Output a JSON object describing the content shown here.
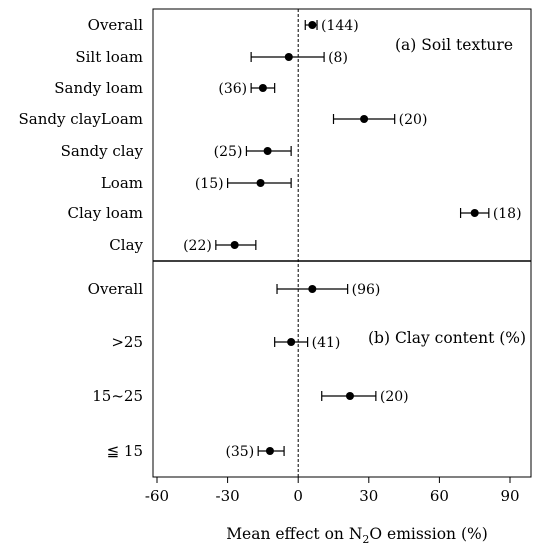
{
  "chart_data": {
    "type": "forest",
    "xlabel": "Mean effect on N₂O emission (%)",
    "xlim": [
      -60,
      95
    ],
    "xticks": [
      -60,
      -30,
      0,
      30,
      60,
      90
    ],
    "reference_line": 0,
    "panels": [
      {
        "label": "(a)  Soil texture",
        "rows": [
          {
            "category": "Overall",
            "mean": 6,
            "lower": 3,
            "upper": 8,
            "n": "(144)"
          },
          {
            "category": "Silt loam",
            "mean": -4,
            "lower": -20,
            "upper": 11,
            "n": "(8)"
          },
          {
            "category": "Sandy loam",
            "mean": -15,
            "lower": -20,
            "upper": -10,
            "n": "(36)"
          },
          {
            "category": "Sandy clayLoam",
            "mean": 28,
            "lower": 15,
            "upper": 41,
            "n": "(20)"
          },
          {
            "category": "Sandy clay",
            "mean": -13,
            "lower": -22,
            "upper": -3,
            "n": "(25)"
          },
          {
            "category": "Loam",
            "mean": -16,
            "lower": -30,
            "upper": -3,
            "n": "(15)"
          },
          {
            "category": "Clay loam",
            "mean": 75,
            "lower": 69,
            "upper": 81,
            "n": "(18)"
          },
          {
            "category": "Clay",
            "mean": -27,
            "lower": -35,
            "upper": -18,
            "n": "(22)"
          }
        ]
      },
      {
        "label": "(b) Clay content (%)",
        "rows": [
          {
            "category": "Overall",
            "mean": 6,
            "lower": -9,
            "upper": 21,
            "n": "(96)"
          },
          {
            "category": ">25",
            "mean": -3,
            "lower": -10,
            "upper": 4,
            "n": "(41)"
          },
          {
            "category": "15~25",
            "mean": 22,
            "lower": 10,
            "upper": 33,
            "n": "(20)"
          },
          {
            "category": "≦ 15",
            "mean": -12,
            "lower": -17,
            "upper": -6,
            "n": "(35)"
          }
        ]
      }
    ]
  }
}
